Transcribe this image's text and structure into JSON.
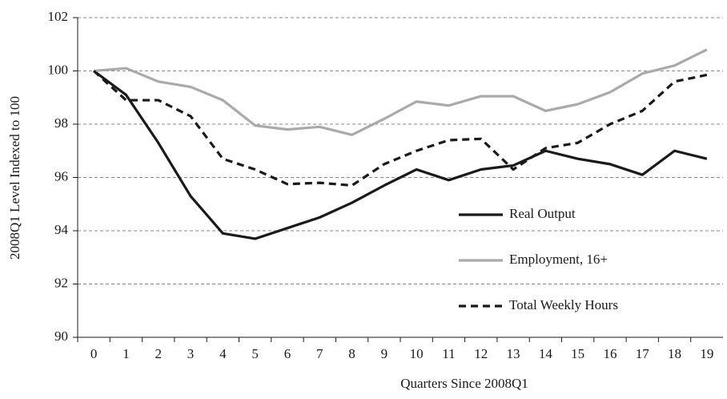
{
  "chart_data": {
    "type": "line",
    "xlabel": "Quarters Since 2008Q1",
    "ylabel": "2008Q1 Level Indexed to 100",
    "x": [
      0,
      1,
      2,
      3,
      4,
      5,
      6,
      7,
      8,
      9,
      10,
      11,
      12,
      13,
      14,
      15,
      16,
      17,
      18,
      19
    ],
    "xlim": [
      -0.5,
      19.5
    ],
    "xticks": [
      0,
      1,
      2,
      3,
      4,
      5,
      6,
      7,
      8,
      9,
      10,
      11,
      12,
      13,
      14,
      15,
      16,
      17,
      18,
      19
    ],
    "ylim": [
      90,
      102
    ],
    "yticks": [
      90,
      92,
      94,
      96,
      98,
      100,
      102
    ],
    "grid": true,
    "legend": "right",
    "series": [
      {
        "name": "Real Output",
        "color": "#1a1a1a",
        "linestyle": "solid",
        "values": [
          100,
          99.1,
          97.3,
          95.3,
          93.9,
          93.7,
          94.1,
          94.5,
          95.05,
          95.7,
          96.3,
          95.9,
          96.3,
          96.45,
          97.0,
          96.7,
          96.5,
          96.1,
          97.0,
          96.7
        ]
      },
      {
        "name": "Employment, 16+",
        "color": "#aaaaaa",
        "linestyle": "solid",
        "values": [
          100,
          100.1,
          99.6,
          99.4,
          98.9,
          97.95,
          97.8,
          97.9,
          97.6,
          98.2,
          98.85,
          98.7,
          99.05,
          99.05,
          98.5,
          98.75,
          99.2,
          99.9,
          100.2,
          100.8
        ]
      },
      {
        "name": "Total Weekly Hours",
        "color": "#1a1a1a",
        "linestyle": "dashed",
        "values": [
          100,
          98.9,
          98.9,
          98.3,
          96.7,
          96.3,
          95.75,
          95.8,
          95.7,
          96.5,
          97.0,
          97.4,
          97.45,
          96.3,
          97.1,
          97.3,
          98.0,
          98.5,
          99.6,
          99.85
        ]
      }
    ]
  }
}
